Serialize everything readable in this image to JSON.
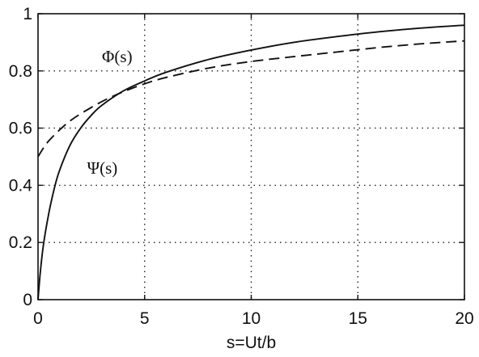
{
  "chart_data": {
    "type": "line",
    "xlabel": "s=Ut/b",
    "ylabel": "",
    "xlim": [
      0,
      20
    ],
    "ylim": [
      0,
      1
    ],
    "xticks": [
      0,
      5,
      10,
      15,
      20
    ],
    "yticks": [
      0,
      0.2,
      0.4,
      0.6,
      0.8,
      1
    ],
    "xtick_labels": [
      "0",
      "5",
      "10",
      "15",
      "20"
    ],
    "ytick_labels": [
      "0",
      "0.2",
      "0.4",
      "0.6",
      "0.8",
      "1"
    ],
    "grid": true,
    "grid_style": "dotted",
    "series": [
      {
        "name": "Φ(s)",
        "style": "dashed",
        "color": "#111111",
        "label_anchor": [
          3.0,
          0.83
        ],
        "x": [
          0,
          0.25,
          0.5,
          1,
          1.5,
          2,
          3,
          4,
          5,
          6,
          8,
          10,
          12,
          14,
          16,
          18,
          20
        ],
        "y": [
          0.5,
          0.53,
          0.555,
          0.593,
          0.625,
          0.65,
          0.693,
          0.727,
          0.755,
          0.777,
          0.81,
          0.833,
          0.85,
          0.866,
          0.882,
          0.895,
          0.905
        ]
      },
      {
        "name": "Ψ(s)",
        "style": "solid",
        "color": "#111111",
        "label_anchor": [
          2.3,
          0.44
        ],
        "x": [
          0,
          0.1,
          0.25,
          0.5,
          0.75,
          1,
          1.5,
          2,
          2.5,
          3,
          4,
          5,
          6,
          8,
          10,
          12,
          14,
          16,
          18,
          20
        ],
        "y": [
          0,
          0.09,
          0.19,
          0.3,
          0.385,
          0.45,
          0.54,
          0.6,
          0.645,
          0.68,
          0.73,
          0.765,
          0.795,
          0.84,
          0.873,
          0.9,
          0.92,
          0.937,
          0.95,
          0.96
        ]
      }
    ]
  }
}
